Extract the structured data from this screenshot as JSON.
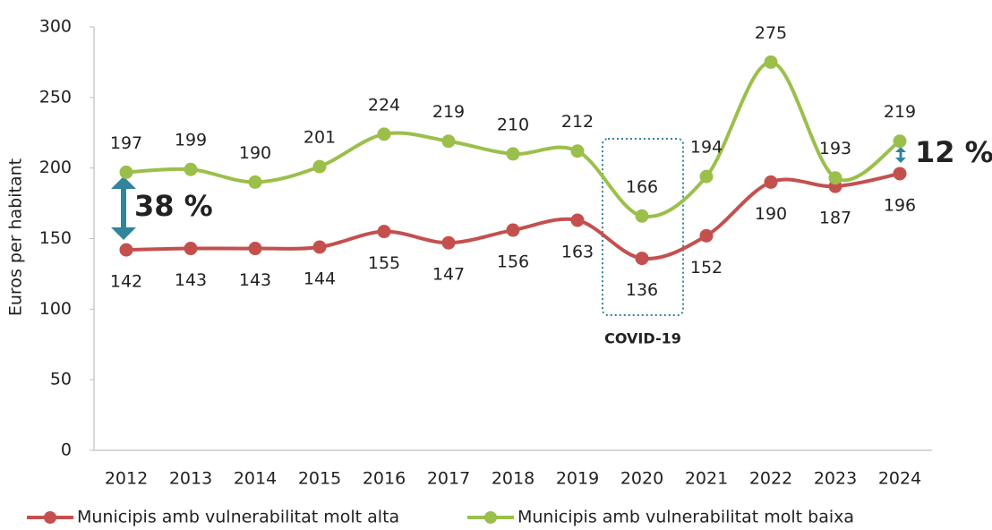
{
  "chart_data": {
    "type": "line",
    "y_label": "Euros per habitant",
    "categories": [
      "2012",
      "2013",
      "2014",
      "2015",
      "2016",
      "2017",
      "2018",
      "2019",
      "2020",
      "2021",
      "2022",
      "2023",
      "2024"
    ],
    "series": [
      {
        "name": "Municipis amb vulnerabilitat molt alta",
        "color": "#c4504e",
        "values": [
          142,
          143,
          143,
          144,
          155,
          147,
          156,
          163,
          136,
          152,
          190,
          187,
          196
        ]
      },
      {
        "name": "Municipis amb vulnerabilitat molt baixa",
        "color": "#9bbf4b",
        "values": [
          197,
          199,
          190,
          201,
          224,
          219,
          210,
          212,
          166,
          194,
          275,
          193,
          219
        ]
      }
    ],
    "ylim": [
      0,
      300
    ],
    "yticks": [
      0,
      50,
      100,
      150,
      200,
      250,
      300
    ],
    "annotations": [
      "38 %",
      "12 %",
      "COVID-19"
    ],
    "annotation_color": "#31849b"
  }
}
